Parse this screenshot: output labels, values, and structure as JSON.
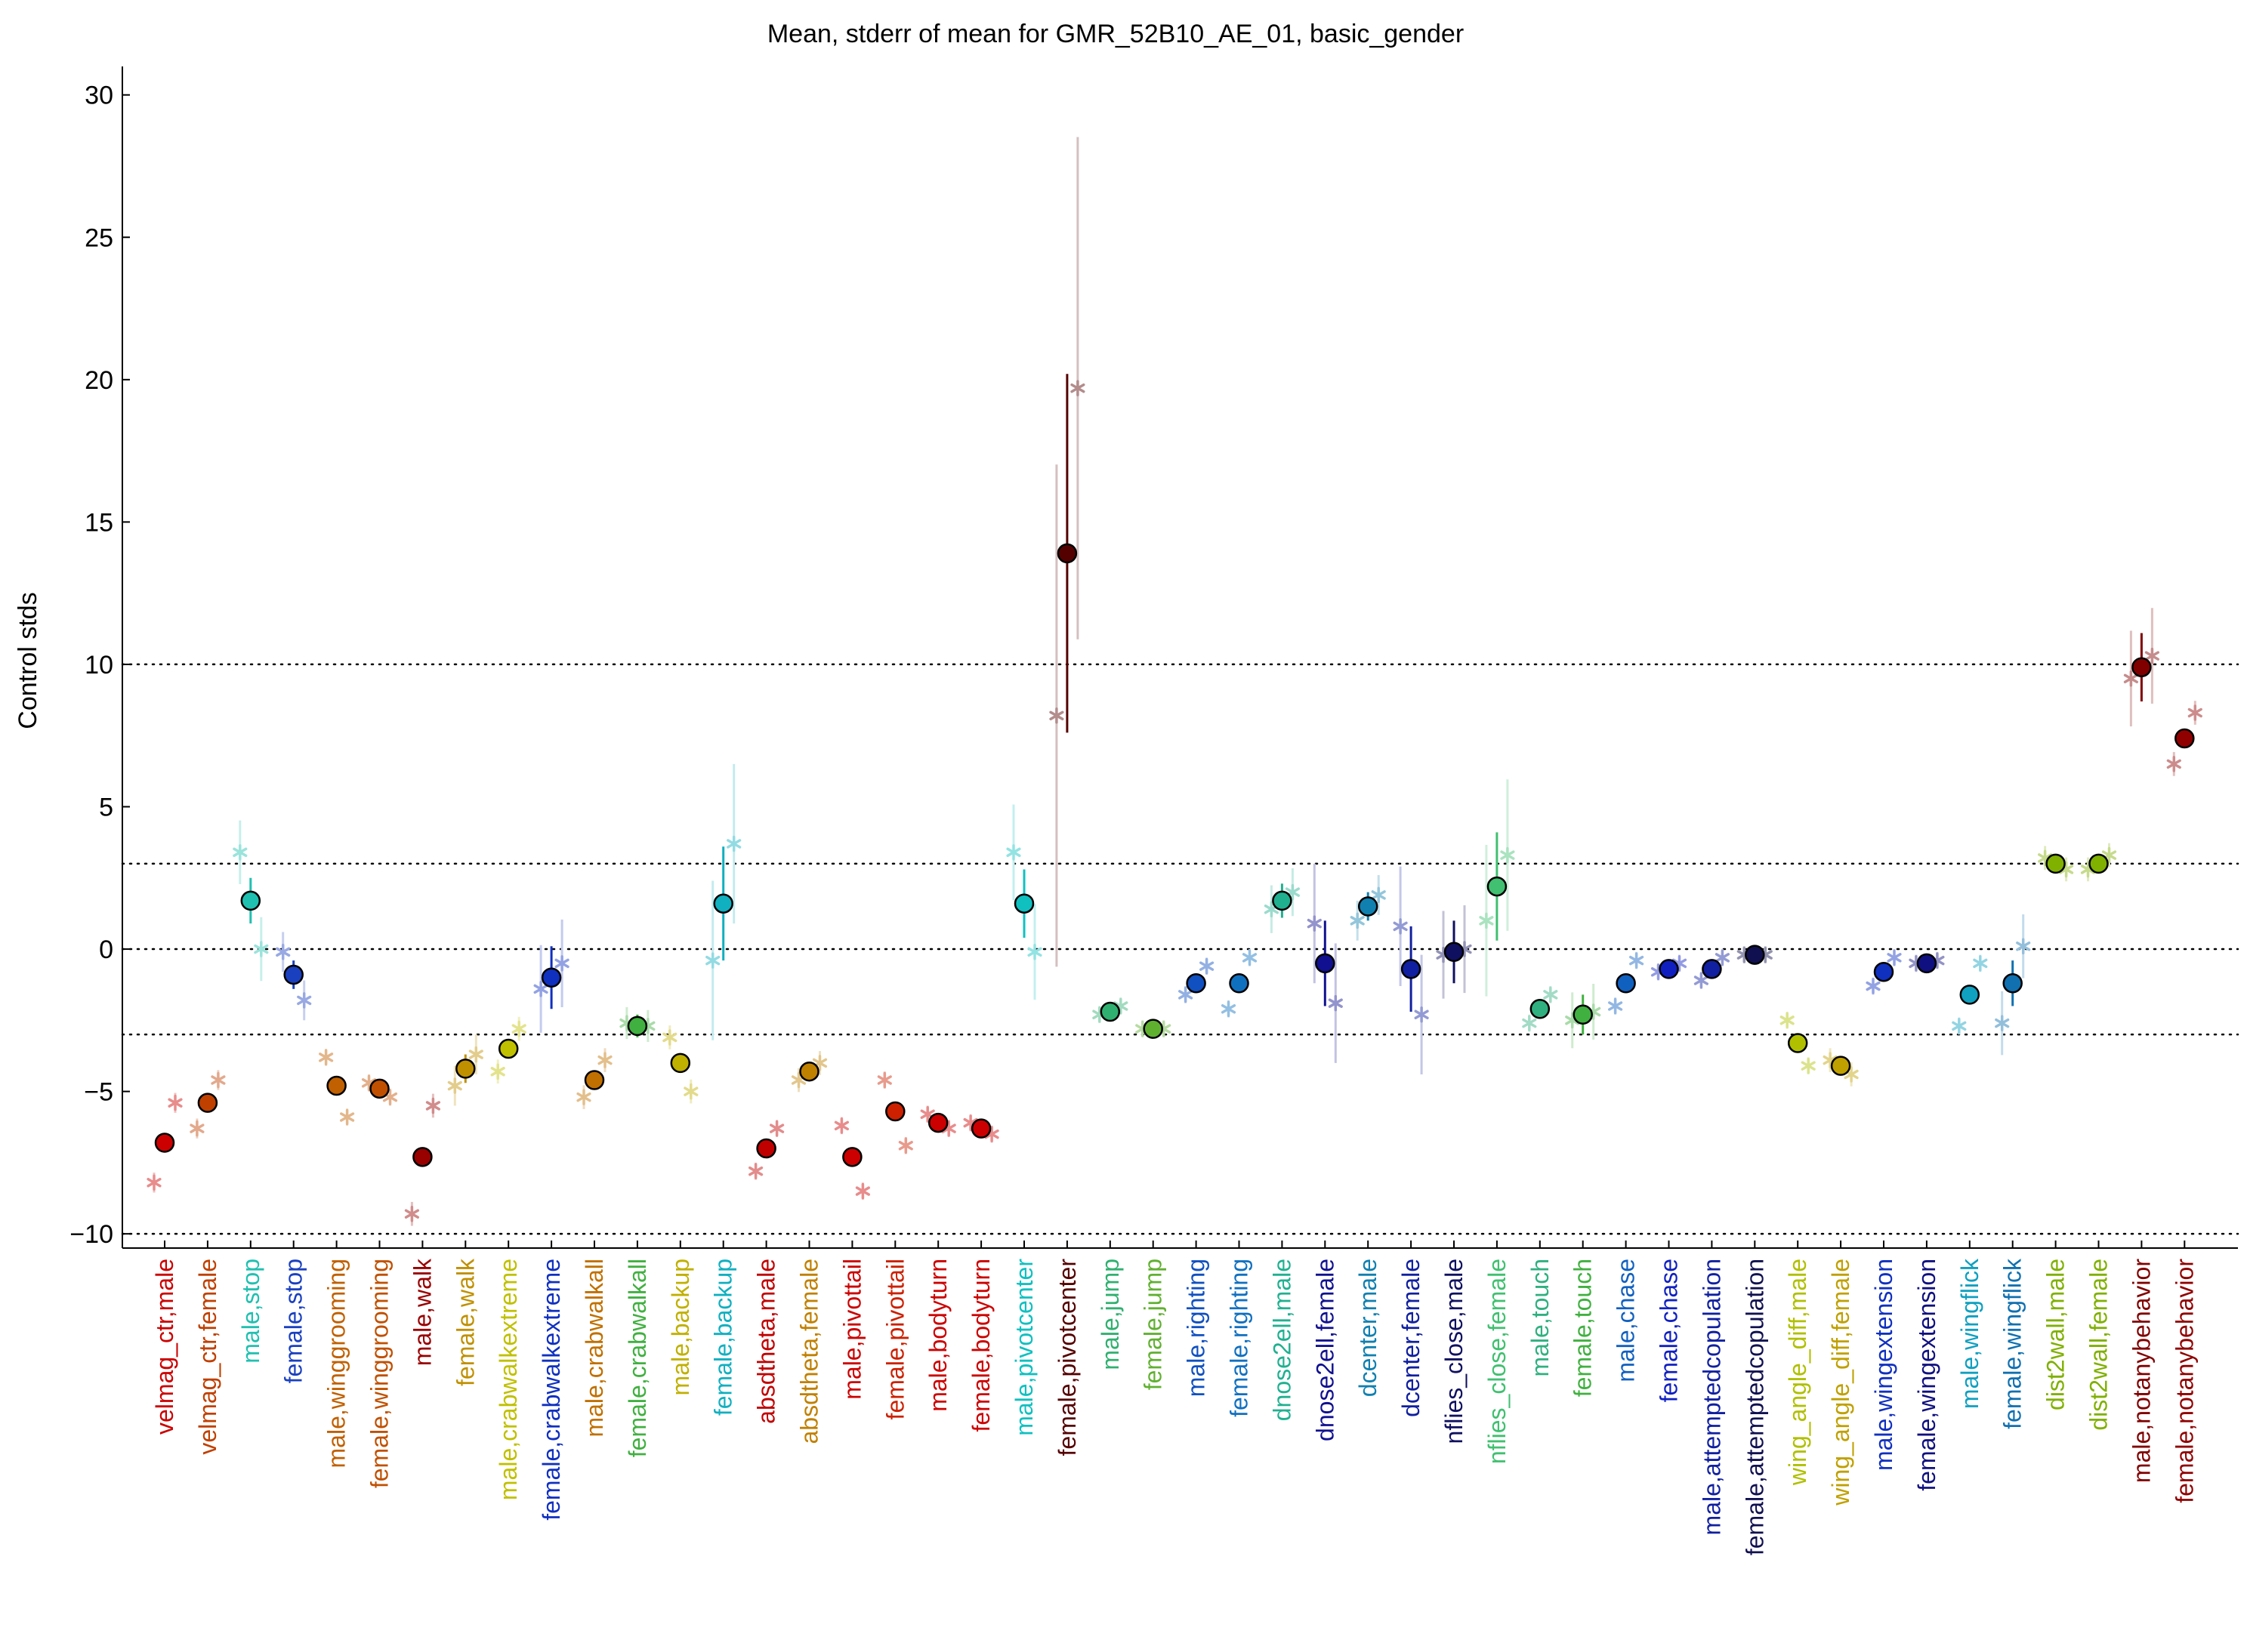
{
  "chart_data": {
    "type": "scatter",
    "title": "Mean, stderr of mean for GMR_52B10_AE_01, basic_gender",
    "xlabel": "",
    "ylabel": "Control stds",
    "ylim": [
      -10.5,
      31
    ],
    "yticks": [
      -10,
      -5,
      0,
      5,
      10,
      15,
      20,
      25,
      30
    ],
    "reference_lines": [
      10,
      3,
      0,
      -3,
      -10
    ],
    "grid": false,
    "legend": "none",
    "categories": [
      {
        "label": "velmag_ctr,male",
        "color": "#cc0000",
        "mean": -6.8,
        "sem": 0.25,
        "points": [
          -8.2,
          -5.4
        ]
      },
      {
        "label": "velmag_ctr,female",
        "color": "#c04000",
        "mean": -5.4,
        "sem": 0.25,
        "points": [
          -6.3,
          -4.6
        ]
      },
      {
        "label": "male,stop",
        "color": "#20c0b0",
        "mean": 1.7,
        "sem": 0.8,
        "points": [
          3.4,
          0.0
        ]
      },
      {
        "label": "female,stop",
        "color": "#1a40c0",
        "mean": -0.9,
        "sem": 0.5,
        "points": [
          -0.1,
          -1.8
        ]
      },
      {
        "label": "male,winggrooming",
        "color": "#c06000",
        "mean": -4.8,
        "sem": 0.2,
        "points": [
          -3.8,
          -5.9
        ]
      },
      {
        "label": "female,winggrooming",
        "color": "#c05000",
        "mean": -4.9,
        "sem": 0.2,
        "points": [
          -4.7,
          -5.2
        ]
      },
      {
        "label": "male,walk",
        "color": "#990000",
        "mean": -7.3,
        "sem": 0.3,
        "points": [
          -9.3,
          -5.5
        ]
      },
      {
        "label": "female,walk",
        "color": "#c09000",
        "mean": -4.2,
        "sem": 0.5,
        "points": [
          -4.8,
          -3.7
        ]
      },
      {
        "label": "male,crabwalkextreme",
        "color": "#c0c000",
        "mean": -3.5,
        "sem": 0.3,
        "points": [
          -4.3,
          -2.8
        ]
      },
      {
        "label": "female,crabwalkextreme",
        "color": "#1030c0",
        "mean": -1.0,
        "sem": 1.1,
        "points": [
          -1.4,
          -0.5
        ]
      },
      {
        "label": "male,crabwalkall",
        "color": "#c07000",
        "mean": -4.6,
        "sem": 0.3,
        "points": [
          -5.2,
          -3.9
        ]
      },
      {
        "label": "female,crabwalkall",
        "color": "#40b040",
        "mean": -2.7,
        "sem": 0.4,
        "points": [
          -2.6,
          -2.7
        ]
      },
      {
        "label": "male,backup",
        "color": "#c0b000",
        "mean": -4.0,
        "sem": 0.3,
        "points": [
          -3.1,
          -5.0
        ]
      },
      {
        "label": "female,backup",
        "color": "#10b0c0",
        "mean": 1.6,
        "sem": 2.0,
        "points": [
          -0.4,
          3.7
        ]
      },
      {
        "label": "absdtheta,male",
        "color": "#c00000",
        "mean": -7.0,
        "sem": 0.2,
        "points": [
          -7.8,
          -6.3
        ]
      },
      {
        "label": "absdtheta,female",
        "color": "#c08000",
        "mean": -4.3,
        "sem": 0.3,
        "points": [
          -4.6,
          -4.0
        ]
      },
      {
        "label": "male,pivottail",
        "color": "#cc0000",
        "mean": -7.3,
        "sem": 0.2,
        "points": [
          -6.2,
          -8.5
        ]
      },
      {
        "label": "female,pivottail",
        "color": "#cc2000",
        "mean": -5.7,
        "sem": 0.2,
        "points": [
          -4.6,
          -6.9
        ]
      },
      {
        "label": "male,bodyturn",
        "color": "#cc0000",
        "mean": -6.1,
        "sem": 0.2,
        "points": [
          -5.8,
          -6.3
        ]
      },
      {
        "label": "female,bodyturn",
        "color": "#cc0000",
        "mean": -6.3,
        "sem": 0.2,
        "points": [
          -6.1,
          -6.5
        ]
      },
      {
        "label": "male,pivotcenter",
        "color": "#10c0c0",
        "mean": 1.6,
        "sem": 1.2,
        "points": [
          3.4,
          -0.1
        ]
      },
      {
        "label": "female,pivotcenter",
        "color": "#550000",
        "mean": 13.9,
        "sem": 6.3,
        "points": [
          8.2,
          19.7
        ]
      },
      {
        "label": "male,jump",
        "color": "#30b070",
        "mean": -2.2,
        "sem": 0.2,
        "points": [
          -2.3,
          -2.0
        ]
      },
      {
        "label": "female,jump",
        "color": "#60b030",
        "mean": -2.8,
        "sem": 0.2,
        "points": [
          -2.8,
          -2.8
        ]
      },
      {
        "label": "male,righting",
        "color": "#1050c0",
        "mean": -1.2,
        "sem": 0.2,
        "points": [
          -1.6,
          -0.6
        ]
      },
      {
        "label": "female,righting",
        "color": "#1070c0",
        "mean": -1.2,
        "sem": 0.2,
        "points": [
          -2.1,
          -0.3
        ]
      },
      {
        "label": "dnose2ell,male",
        "color": "#20b090",
        "mean": 1.7,
        "sem": 0.6,
        "points": [
          1.4,
          2.0
        ]
      },
      {
        "label": "dnose2ell,female",
        "color": "#101090",
        "mean": -0.5,
        "sem": 1.5,
        "points": [
          0.9,
          -1.9
        ]
      },
      {
        "label": "dcenter,male",
        "color": "#1080b0",
        "mean": 1.5,
        "sem": 0.5,
        "points": [
          1.0,
          1.9
        ]
      },
      {
        "label": "dcenter,female",
        "color": "#1020a0",
        "mean": -0.7,
        "sem": 1.5,
        "points": [
          0.8,
          -2.3
        ]
      },
      {
        "label": "nflies_close,male",
        "color": "#101060",
        "mean": -0.1,
        "sem": 1.1,
        "points": [
          -0.2,
          0.0
        ]
      },
      {
        "label": "nflies_close,female",
        "color": "#40c070",
        "mean": 2.2,
        "sem": 1.9,
        "points": [
          1.0,
          3.3
        ]
      },
      {
        "label": "male,touch",
        "color": "#30b080",
        "mean": -2.1,
        "sem": 0.2,
        "points": [
          -2.6,
          -1.6
        ]
      },
      {
        "label": "female,touch",
        "color": "#40b040",
        "mean": -2.3,
        "sem": 0.7,
        "points": [
          -2.5,
          -2.2
        ]
      },
      {
        "label": "male,chase",
        "color": "#1060c0",
        "mean": -1.2,
        "sem": 0.1,
        "points": [
          -2.0,
          -0.4
        ]
      },
      {
        "label": "female,chase",
        "color": "#1020c0",
        "mean": -0.7,
        "sem": 0.1,
        "points": [
          -0.8,
          -0.5
        ]
      },
      {
        "label": "male,attemptedcopulation",
        "color": "#1020a0",
        "mean": -0.7,
        "sem": 0.1,
        "points": [
          -1.1,
          -0.3
        ]
      },
      {
        "label": "female,attemptedcopulation",
        "color": "#101050",
        "mean": -0.2,
        "sem": 0.1,
        "points": [
          -0.2,
          -0.2
        ]
      },
      {
        "label": "wing_angle_diff,male",
        "color": "#b0c000",
        "mean": -3.3,
        "sem": 0.2,
        "points": [
          -2.5,
          -4.1
        ]
      },
      {
        "label": "wing_angle_diff,female",
        "color": "#c0a000",
        "mean": -4.1,
        "sem": 0.3,
        "points": [
          -3.9,
          -4.4
        ]
      },
      {
        "label": "male,wingextension",
        "color": "#1030c0",
        "mean": -0.8,
        "sem": 0.1,
        "points": [
          -1.3,
          -0.3
        ]
      },
      {
        "label": "female,wingextension",
        "color": "#101080",
        "mean": -0.5,
        "sem": 0.1,
        "points": [
          -0.5,
          -0.4
        ]
      },
      {
        "label": "male,wingflick",
        "color": "#10a0c0",
        "mean": -1.6,
        "sem": 0.1,
        "points": [
          -2.7,
          -0.5
        ]
      },
      {
        "label": "female,wingflick",
        "color": "#1070b0",
        "mean": -1.2,
        "sem": 0.8,
        "points": [
          -2.6,
          0.1
        ]
      },
      {
        "label": "dist2wall,male",
        "color": "#80b000",
        "mean": 3.0,
        "sem": 0.3,
        "points": [
          3.2,
          2.8
        ]
      },
      {
        "label": "dist2wall,female",
        "color": "#80b000",
        "mean": 3.0,
        "sem": 0.3,
        "points": [
          2.8,
          3.3
        ]
      },
      {
        "label": "male,notanybehavior",
        "color": "#800000",
        "mean": 9.9,
        "sem": 1.2,
        "points": [
          9.5,
          10.3
        ]
      },
      {
        "label": "female,notanybehavior",
        "color": "#900000",
        "mean": 7.4,
        "sem": 0.3,
        "points": [
          6.5,
          8.3
        ]
      }
    ]
  }
}
